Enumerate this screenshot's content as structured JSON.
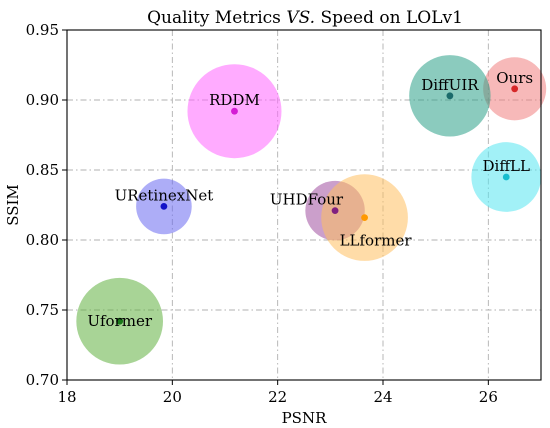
{
  "chart_data": {
    "type": "scatter",
    "title": {
      "prefix": "Quality Metrics ",
      "emphasis": "VS.",
      "suffix": " Speed on LOLv1"
    },
    "xlabel": "PSNR",
    "ylabel": "SSIM",
    "xlim": [
      18,
      27
    ],
    "ylim": [
      0.7,
      0.95
    ],
    "xticks": [
      18,
      20,
      22,
      24,
      26
    ],
    "yticks": [
      0.7,
      0.75,
      0.8,
      0.85,
      0.9,
      0.95
    ],
    "xtick_labels": [
      "18",
      "20",
      "22",
      "24",
      "26"
    ],
    "ytick_labels": [
      "0.70",
      "0.75",
      "0.80",
      "0.85",
      "0.90",
      "0.95"
    ],
    "grid": true,
    "points": [
      {
        "name": "Ours",
        "x": 26.5,
        "y": 0.908,
        "size": 0.45,
        "color": "#f08080",
        "dot": "#d62728",
        "label_pos": "top-center"
      },
      {
        "name": "DiffUIR",
        "x": 25.27,
        "y": 0.903,
        "size": 0.75,
        "color": "#2ca089",
        "dot": "#1b6b6b",
        "label_pos": "top-center"
      },
      {
        "name": "RDDM",
        "x": 21.18,
        "y": 0.892,
        "size": 1.0,
        "color": "#ff66ff",
        "dot": "#d41cd4",
        "label_pos": "top-center"
      },
      {
        "name": "DiffLL",
        "x": 26.34,
        "y": 0.845,
        "size": 0.55,
        "color": "#55e6f0",
        "dot": "#17becf",
        "label_pos": "top-center"
      },
      {
        "name": "URetinexNet",
        "x": 19.84,
        "y": 0.824,
        "size": 0.35,
        "color": "#6a6af0",
        "dot": "#1212c8",
        "label_pos": "top-center"
      },
      {
        "name": "UHDFour",
        "x": 23.09,
        "y": 0.821,
        "size": 0.4,
        "color": "#a050a0",
        "dot": "#802080",
        "label_pos": "top-left"
      },
      {
        "name": "LLformer",
        "x": 23.65,
        "y": 0.816,
        "size": 0.85,
        "color": "#ffc060",
        "dot": "#ff9900",
        "label_pos": "bottom-right"
      },
      {
        "name": "Uformer",
        "x": 19.0,
        "y": 0.742,
        "size": 0.85,
        "color": "#60b040",
        "dot": "#1a7a1a",
        "label_pos": "center"
      }
    ]
  }
}
